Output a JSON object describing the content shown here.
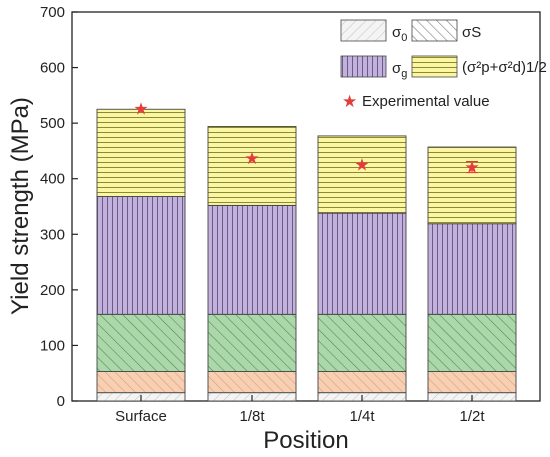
{
  "chart_data": {
    "type": "bar",
    "stacked": true,
    "xlabel": "Position",
    "ylabel": "Yield strength (MPa)",
    "ylim": [
      0,
      700
    ],
    "yticks": [
      0,
      100,
      200,
      300,
      400,
      500,
      600,
      700
    ],
    "categories": [
      "Surface",
      "1/8t",
      "1/4t",
      "1/2t"
    ],
    "series": [
      {
        "key": "sigma0",
        "label_main": "σ",
        "label_sub": "0",
        "values": [
          15,
          15,
          15,
          15
        ],
        "color": "#f4f4f4",
        "hatch": "diag-forward",
        "hatch_color": "#c8c8c8"
      },
      {
        "key": "sigmaS",
        "label_main": "σS",
        "values": [
          38,
          38,
          38,
          38
        ],
        "color": "#f6d0b4",
        "hatch": "diag-back",
        "hatch_color": "#ea9a67"
      },
      {
        "key": "sigmaP",
        "values": [
          103,
          103,
          103,
          103
        ],
        "color": "#abd7aa",
        "hatch": "diag-back",
        "hatch_color": "#4a8a4c"
      },
      {
        "key": "sigmag",
        "label_main": "σ",
        "label_sub": "g",
        "values": [
          212,
          196,
          182,
          163
        ],
        "color": "#c3b1dd",
        "hatch": "vertical",
        "hatch_color": "#6a5a86"
      },
      {
        "key": "sigma_pd",
        "label_formula": "(σ²p+σ²d)1/2",
        "values": [
          157,
          142,
          139,
          138
        ],
        "color": "#fbf6a3",
        "hatch": "horizontal",
        "hatch_color": "#8c8a2f"
      }
    ],
    "experimental": {
      "label": "Experimental value",
      "values": [
        526,
        437,
        426,
        421
      ],
      "errors": [
        0,
        0,
        0,
        10
      ],
      "marker_color": "#e53b3b"
    },
    "grid": false,
    "legend_position": "top-right"
  }
}
